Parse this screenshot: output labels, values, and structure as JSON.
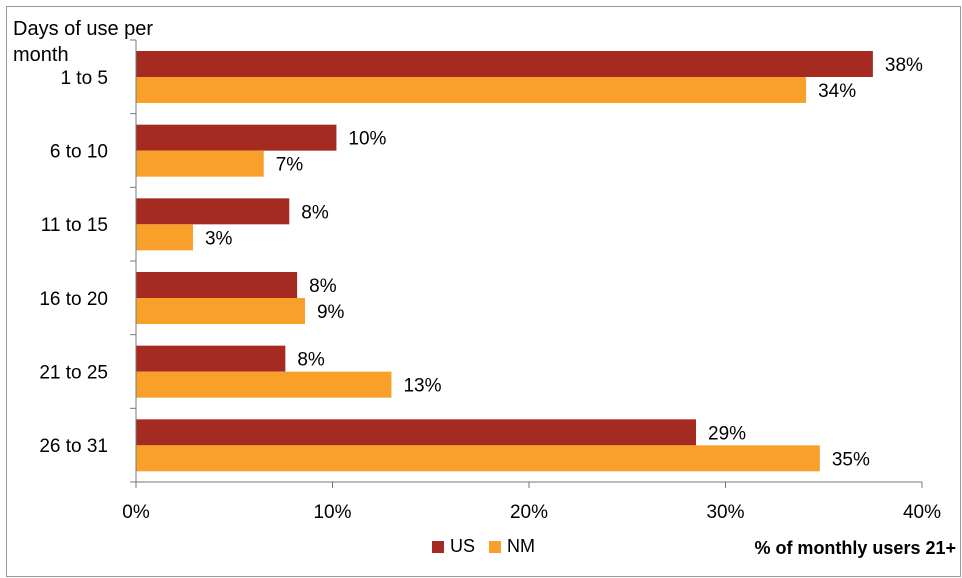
{
  "chart_data": {
    "type": "bar",
    "orientation": "horizontal",
    "ylabel": "Days of use per month",
    "xlabel": "% of monthly users 21+",
    "categories": [
      "1 to 5",
      "6 to 10",
      "11 to 15",
      "16 to 20",
      "21 to 25",
      "26 to 31"
    ],
    "series": [
      {
        "name": "US",
        "color": "#A42A22",
        "values": [
          37.5,
          10.2,
          7.8,
          8.2,
          7.6,
          28.5
        ],
        "labels": [
          "38%",
          "10%",
          "8%",
          "8%",
          "8%",
          "29%"
        ]
      },
      {
        "name": "NM",
        "color": "#F9A02B",
        "values": [
          34.1,
          6.5,
          2.9,
          8.6,
          13.0,
          34.8
        ],
        "labels": [
          "34%",
          "7%",
          "3%",
          "9%",
          "13%",
          "35%"
        ]
      }
    ],
    "xlim": [
      0,
      40
    ],
    "xticks": [
      0,
      10,
      20,
      30,
      40
    ],
    "xtick_labels": [
      "0%",
      "10%",
      "20%",
      "30%",
      "40%"
    ],
    "legend_position": "bottom",
    "grid": false
  }
}
